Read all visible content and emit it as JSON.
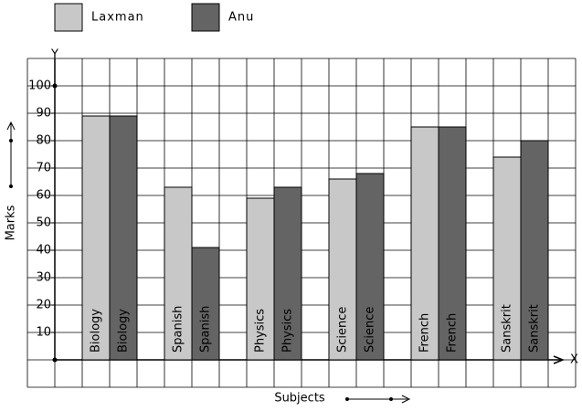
{
  "chart_data": {
    "type": "bar",
    "x_label": "Subjects",
    "y_label": "Marks",
    "x_axis_letter": "X",
    "y_axis_letter": "Y",
    "categories": [
      "Biology",
      "Spanish",
      "Physics",
      "Science",
      "French",
      "Sanskrit"
    ],
    "series": [
      {
        "name": "Laxman",
        "color": "#c8c8c8",
        "values": [
          89,
          63,
          59,
          66,
          85,
          74
        ]
      },
      {
        "name": "Anu",
        "color": "#646464",
        "values": [
          89,
          41,
          63,
          68,
          85,
          80
        ]
      }
    ],
    "ylim": [
      -10,
      110
    ],
    "yticks": [
      10,
      20,
      30,
      40,
      50,
      60,
      70,
      80,
      90,
      100
    ],
    "grid": true
  }
}
